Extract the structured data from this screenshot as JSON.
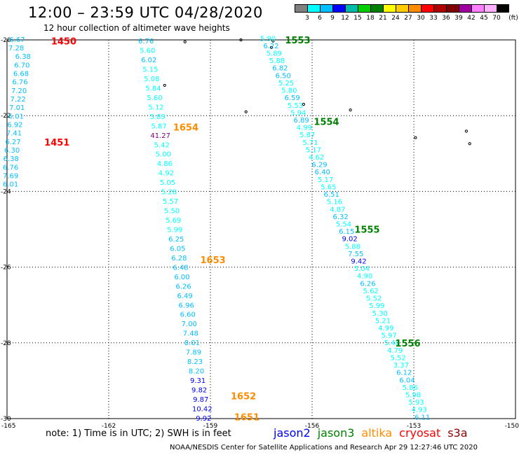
{
  "header": {
    "title": "12:00 – 23:59 UTC 04/28/2020",
    "subtitle": "12 hour collection of altimeter wave heights"
  },
  "colorbar": {
    "unit_label": "(ft)",
    "colors": [
      "#808080",
      "#00ffff",
      "#00bfff",
      "#0000ff",
      "#00bbaa",
      "#00d000",
      "#008000",
      "#ffff00",
      "#ffcc00",
      "#ff8c00",
      "#ff0000",
      "#b00000",
      "#800000",
      "#a000a0",
      "#ff80ff",
      "#ffb0ff",
      "#000000"
    ],
    "labels": [
      "3",
      "6",
      "9",
      "12",
      "15",
      "18",
      "21",
      "24",
      "27",
      "30",
      "33",
      "36",
      "39",
      "42",
      "45",
      "70"
    ]
  },
  "axes": {
    "lon_labels": [
      "-165",
      "-162",
      "-159",
      "-156",
      "-153",
      "-150"
    ],
    "lat_labels": [
      "-20",
      "-22",
      "-24",
      "-26",
      "-28",
      "-30"
    ]
  },
  "chart_data": {
    "type": "scatter",
    "lon_range": [
      -165,
      -150
    ],
    "lat_range": [
      -30,
      -20
    ],
    "satellite_colors": {
      "jason2": "#0000ff",
      "jason3": "#008000",
      "altika": "#ff8c00",
      "cryosat": "#ff0000",
      "s3a": "#8b0000"
    },
    "passes": [
      {
        "time": "1450",
        "satellite": "cryosat",
        "label_lon": -163.7,
        "label_lat": -20.03
      },
      {
        "time": "1451",
        "satellite": "cryosat",
        "label_lon": -163.9,
        "label_lat": -22.7
      },
      {
        "time": "1654",
        "satellite": "altika",
        "label_lon": -160.1,
        "label_lat": -22.3
      },
      {
        "time": "1653",
        "satellite": "altika",
        "label_lon": -159.3,
        "label_lat": -25.8
      },
      {
        "time": "1652",
        "satellite": "altika",
        "label_lon": -158.4,
        "label_lat": -29.4
      },
      {
        "time": "1651",
        "satellite": "altika",
        "label_lon": -158.3,
        "label_lat": -29.95
      },
      {
        "time": "1553",
        "satellite": "jason3",
        "label_lon": -156.8,
        "label_lat": -20.0
      },
      {
        "time": "1554",
        "satellite": "jason3",
        "label_lon": -155.95,
        "label_lat": -22.15
      },
      {
        "time": "1555",
        "satellite": "jason3",
        "label_lon": -154.75,
        "label_lat": -25.0
      },
      {
        "time": "1556",
        "satellite": "jason3",
        "label_lon": -153.55,
        "label_lat": -28.0
      }
    ],
    "tracks": [
      {
        "name": "track-1450-1451",
        "lon_start": -164.7,
        "lat_start": -19.98,
        "lon_end": -165.2,
        "lat_end": -23.8,
        "values": [
          "6.67",
          "7.28",
          "6.38",
          "6.70",
          "6.68",
          "6.76",
          "7.20",
          "7.22",
          "7.01",
          "6.01",
          "6.92",
          "7.41",
          "6.27",
          "6.30",
          "6.38",
          "6.76",
          "7.69",
          "6.01"
        ]
      },
      {
        "name": "track-altika",
        "lon_start": -160.9,
        "lat_start": -20.02,
        "lon_end": -159.2,
        "lat_end": -29.98,
        "values": [
          "6.76",
          "5.60",
          "6.02",
          "5.15",
          "5.08",
          "5.84",
          "5.60",
          "5.12",
          "5.89",
          "5.87",
          "41.27",
          "5.42",
          "5.00",
          "4.86",
          "4.92",
          "5.05",
          "5.28",
          "5.57",
          "5.50",
          "5.69",
          "5.99",
          "6.25",
          "6.05",
          "6.28",
          "6.48",
          "6.00",
          "6.26",
          "6.49",
          "6.96",
          "6.60",
          "7.00",
          "7.48",
          "8.01",
          "7.89",
          "8.23",
          "8.20",
          "9.31",
          "9.82",
          "9.87",
          "10.42",
          "9.92"
        ]
      },
      {
        "name": "track-jason3",
        "lon_start": -157.3,
        "lat_start": -19.95,
        "lon_end": -152.75,
        "lat_end": -29.95,
        "values": [
          "5.90",
          "6.22",
          "5.89",
          "5.88",
          "6.82",
          "6.50",
          "5.25",
          "5.80",
          "6.59",
          "5.53",
          "5.94",
          "6.89",
          "4.99",
          "5.87",
          "5.71",
          "5.17",
          "4.62",
          "6.29",
          "6.40",
          "5.17",
          "5.65",
          "6.51",
          "5.16",
          "4.87",
          "6.32",
          "5.54",
          "6.15",
          "9.02",
          "5.88",
          "7.55",
          "9.42",
          "5.04",
          "4.90",
          "6.26",
          "5.62",
          "5.52",
          "5.99",
          "5.30",
          "5.21",
          "4.99",
          "5.97",
          "5.48",
          "4.79",
          "5.52",
          "3.37",
          "6.12",
          "6.04",
          "5.86",
          "5.98",
          "5.93",
          "4.93",
          "6.11"
        ]
      }
    ],
    "islands": [
      {
        "lon": -160.35,
        "lat": -21.2
      },
      {
        "lon": -159.75,
        "lat": -20.05
      },
      {
        "lon": -157.95,
        "lat": -21.9
      },
      {
        "lon": -157.2,
        "lat": -20.2
      },
      {
        "lon": -157.15,
        "lat": -20.03
      },
      {
        "lon": -158.1,
        "lat": -20.0
      },
      {
        "lon": -156.25,
        "lat": -21.7
      },
      {
        "lon": -154.87,
        "lat": -21.85
      },
      {
        "lon": -152.95,
        "lat": -22.58
      },
      {
        "lon": -151.45,
        "lat": -22.41
      },
      {
        "lon": -151.35,
        "lat": -22.74
      }
    ]
  },
  "footer": {
    "note": "note: 1) Time is in UTC; 2) SWH is in feet",
    "legend": [
      {
        "label": "jason2",
        "color": "#0000ff"
      },
      {
        "label": "jason3",
        "color": "#008000"
      },
      {
        "label": "altika",
        "color": "#ff8c00"
      },
      {
        "label": "cryosat",
        "color": "#ff0000"
      },
      {
        "label": "s3a",
        "color": "#8b0000"
      }
    ],
    "credit": "NOAA/NESDIS Center for Satellite Applications and Research   Apr 29 12:27:46 UTC 2020"
  }
}
